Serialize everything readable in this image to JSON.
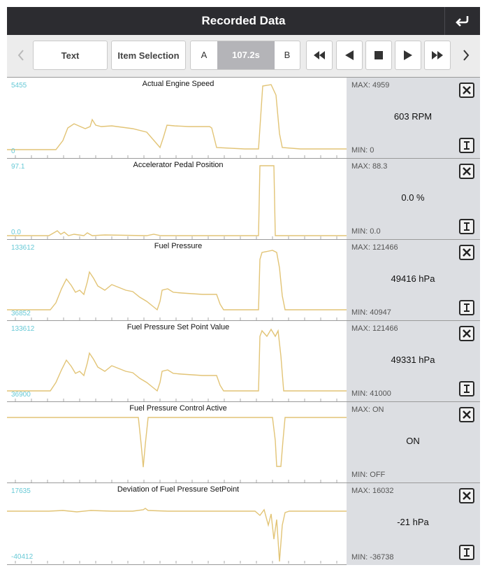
{
  "header": {
    "title": "Recorded Data",
    "back_icon": "return-arrow-icon"
  },
  "toolbar": {
    "text_label": "Text",
    "item_selection_label": "Item Selection",
    "marker_a": "A",
    "time_value": "107.2s",
    "marker_b": "B",
    "icons": [
      "chevron-left-icon",
      "fast-rewind-icon",
      "step-back-icon",
      "stop-icon",
      "play-icon",
      "fast-forward-icon",
      "chevron-right-icon"
    ]
  },
  "colors": {
    "trace": "#e2c476",
    "axis_label": "#67c9d6",
    "side_panel": "#dcdee2",
    "header": "#2c2c30"
  },
  "panels": [
    {
      "title": "Actual Engine Speed",
      "axis_max": "5455",
      "axis_min": "0",
      "max": "MAX: 4959",
      "min": "MIN: 0",
      "current": "603 RPM"
    },
    {
      "title": "Accelerator Pedal Position",
      "axis_max": "97.1",
      "axis_min": "0.0",
      "max": "MAX: 88.3",
      "min": "MIN: 0.0",
      "current": "0.0 %"
    },
    {
      "title": "Fuel Pressure",
      "axis_max": "133612",
      "axis_min": "36852",
      "max": "MAX: 121466",
      "min": "MIN: 40947",
      "current": "49416 hPa"
    },
    {
      "title": "Fuel Pressure Set Point Value",
      "axis_max": "133612",
      "axis_min": "36900",
      "max": "MAX: 121466",
      "min": "MIN: 41000",
      "current": "49331 hPa"
    },
    {
      "title": "Fuel Pressure Control Active",
      "axis_max": "",
      "axis_min": "",
      "max": "MAX: ON",
      "min": "MIN: OFF",
      "current": "ON"
    },
    {
      "title": "Deviation of Fuel Pressure SetPoint",
      "axis_max": "17635",
      "axis_min": "-40412",
      "max": "MAX: 16032",
      "min": "MIN: -36738",
      "current": "-21 hPa"
    }
  ]
}
